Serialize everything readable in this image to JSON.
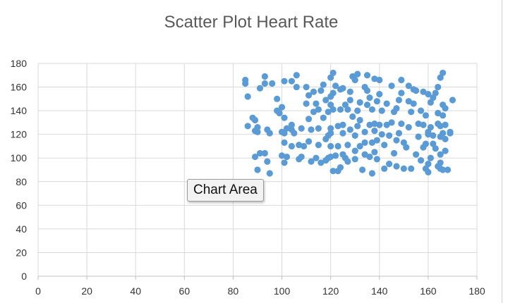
{
  "chart_data": {
    "type": "scatter",
    "title": "Scatter Plot Heart Rate",
    "xlim": [
      0,
      180
    ],
    "ylim": [
      0,
      180
    ],
    "x_ticks": [
      0,
      20,
      40,
      60,
      80,
      100,
      120,
      140,
      160,
      180
    ],
    "y_ticks": [
      0,
      20,
      40,
      60,
      80,
      100,
      120,
      140,
      160,
      180
    ],
    "grid": true,
    "marker_color": "#5b9bd5",
    "points": [
      [
        85,
        166
      ],
      [
        85,
        163
      ],
      [
        86,
        152
      ],
      [
        86,
        127
      ],
      [
        88,
        134
      ],
      [
        89,
        123
      ],
      [
        89,
        101
      ],
      [
        89,
        132
      ],
      [
        90,
        126
      ],
      [
        90,
        122
      ],
      [
        90,
        90
      ],
      [
        91,
        104
      ],
      [
        91,
        159
      ],
      [
        93,
        169
      ],
      [
        93,
        163
      ],
      [
        93,
        104
      ],
      [
        94,
        97
      ],
      [
        94,
        124
      ],
      [
        95,
        121
      ],
      [
        95,
        87
      ],
      [
        96,
        163
      ],
      [
        98,
        150
      ],
      [
        98,
        140
      ],
      [
        99,
        138
      ],
      [
        100,
        122
      ],
      [
        100,
        143
      ],
      [
        100,
        102
      ],
      [
        101,
        121
      ],
      [
        101,
        165
      ],
      [
        101,
        134
      ],
      [
        101,
        113
      ],
      [
        101,
        96
      ],
      [
        102,
        125
      ],
      [
        102,
        101
      ],
      [
        104,
        124
      ],
      [
        104,
        128
      ],
      [
        104,
        110
      ],
      [
        104,
        165
      ],
      [
        105,
        121
      ],
      [
        106,
        170
      ],
      [
        106,
        160
      ],
      [
        107,
        99
      ],
      [
        107,
        111
      ],
      [
        108,
        125
      ],
      [
        108,
        101
      ],
      [
        109,
        110
      ],
      [
        110,
        146
      ],
      [
        110,
        160
      ],
      [
        111,
        153
      ],
      [
        111,
        133
      ],
      [
        111,
        114
      ],
      [
        112,
        97
      ],
      [
        112,
        124
      ],
      [
        113,
        156
      ],
      [
        113,
        139
      ],
      [
        114,
        100
      ],
      [
        114,
        146
      ],
      [
        115,
        125
      ],
      [
        115,
        141
      ],
      [
        115,
        111
      ],
      [
        116,
        157
      ],
      [
        116,
        96
      ],
      [
        117,
        162
      ],
      [
        117,
        134
      ],
      [
        118,
        116
      ],
      [
        118,
        149
      ],
      [
        118,
        98
      ],
      [
        119,
        139
      ],
      [
        119,
        119
      ],
      [
        119,
        100
      ],
      [
        120,
        168
      ],
      [
        120,
        152
      ],
      [
        120,
        145
      ],
      [
        120,
        125
      ],
      [
        120,
        121
      ],
      [
        120,
        110
      ],
      [
        120,
        101
      ],
      [
        121,
        172
      ],
      [
        121,
        155
      ],
      [
        121,
        141
      ],
      [
        121,
        89
      ],
      [
        122,
        161
      ],
      [
        122,
        102
      ],
      [
        123,
        89
      ],
      [
        123,
        127
      ],
      [
        123,
        110
      ],
      [
        124,
        141
      ],
      [
        124,
        92
      ],
      [
        124,
        158
      ],
      [
        125,
        128
      ],
      [
        125,
        121
      ],
      [
        125,
        103
      ],
      [
        125,
        159
      ],
      [
        126,
        145
      ],
      [
        126,
        100
      ],
      [
        127,
        141
      ],
      [
        127,
        111
      ],
      [
        127,
        97
      ],
      [
        128,
        156
      ],
      [
        128,
        149
      ],
      [
        128,
        124
      ],
      [
        129,
        169
      ],
      [
        129,
        135
      ],
      [
        130,
        119
      ],
      [
        130,
        106
      ],
      [
        130,
        99
      ],
      [
        130,
        166
      ],
      [
        131,
        140
      ],
      [
        131,
        171
      ],
      [
        131,
        127
      ],
      [
        132,
        132
      ],
      [
        132,
        147
      ],
      [
        132,
        110
      ],
      [
        133,
        90
      ],
      [
        134,
        160
      ],
      [
        134,
        122
      ],
      [
        134,
        113
      ],
      [
        134,
        103
      ],
      [
        135,
        157
      ],
      [
        135,
        145
      ],
      [
        135,
        170
      ],
      [
        136,
        101
      ],
      [
        136,
        151
      ],
      [
        136,
        128
      ],
      [
        137,
        87
      ],
      [
        137,
        113
      ],
      [
        137,
        141
      ],
      [
        138,
        167
      ],
      [
        138,
        129
      ],
      [
        138,
        123
      ],
      [
        138,
        105
      ],
      [
        139,
        115
      ],
      [
        139,
        148
      ],
      [
        139,
        99
      ],
      [
        140,
        166
      ],
      [
        140,
        154
      ],
      [
        140,
        128
      ],
      [
        141,
        140
      ],
      [
        141,
        120
      ],
      [
        142,
        111
      ],
      [
        142,
        91
      ],
      [
        143,
        146
      ],
      [
        143,
        128
      ],
      [
        144,
        95
      ],
      [
        144,
        119
      ],
      [
        145,
        161
      ],
      [
        145,
        130
      ],
      [
        146,
        104
      ],
      [
        146,
        139
      ],
      [
        147,
        142
      ],
      [
        147,
        115
      ],
      [
        147,
        93
      ],
      [
        148,
        149
      ],
      [
        148,
        121
      ],
      [
        149,
        166
      ],
      [
        149,
        155
      ],
      [
        149,
        129
      ],
      [
        150,
        113
      ],
      [
        150,
        91
      ],
      [
        151,
        109
      ],
      [
        152,
        161
      ],
      [
        152,
        148
      ],
      [
        152,
        126
      ],
      [
        153,
        139
      ],
      [
        153,
        91
      ],
      [
        154,
        158
      ],
      [
        154,
        146
      ],
      [
        155,
        157
      ],
      [
        155,
        103
      ],
      [
        156,
        129
      ],
      [
        156,
        118
      ],
      [
        157,
        140
      ],
      [
        157,
        98
      ],
      [
        158,
        156
      ],
      [
        158,
        128
      ],
      [
        158,
        109
      ],
      [
        159,
        136
      ],
      [
        159,
        112
      ],
      [
        159,
        91
      ],
      [
        160,
        154
      ],
      [
        160,
        122
      ],
      [
        160,
        120
      ],
      [
        160,
        95
      ],
      [
        160,
        88
      ],
      [
        161,
        100
      ],
      [
        161,
        126
      ],
      [
        161,
        147
      ],
      [
        162,
        119
      ],
      [
        162,
        112
      ],
      [
        162,
        151
      ],
      [
        163,
        155
      ],
      [
        163,
        108
      ],
      [
        164,
        160
      ],
      [
        164,
        138
      ],
      [
        164,
        129
      ],
      [
        164,
        93
      ],
      [
        165,
        168
      ],
      [
        165,
        127
      ],
      [
        165,
        118
      ],
      [
        165,
        103
      ],
      [
        165,
        96
      ],
      [
        165,
        91
      ],
      [
        166,
        172
      ],
      [
        166,
        121
      ],
      [
        166,
        145
      ],
      [
        166,
        136
      ],
      [
        166,
        90
      ],
      [
        167,
        142
      ],
      [
        167,
        128
      ],
      [
        167,
        116
      ],
      [
        167,
        106
      ],
      [
        168,
        90
      ],
      [
        169,
        121
      ],
      [
        169,
        122
      ],
      [
        170,
        149
      ]
    ]
  },
  "tooltip_label": "Chart Area"
}
